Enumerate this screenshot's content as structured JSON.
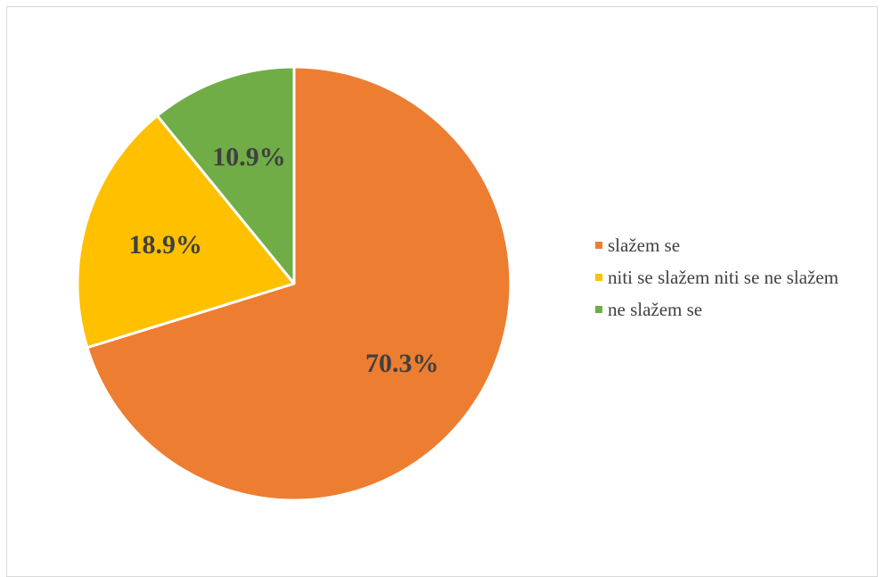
{
  "chart_data": {
    "type": "pie",
    "categories": [
      "slažem se",
      "niti se slažem niti se ne slažem",
      "ne slažem se"
    ],
    "values": [
      70.3,
      18.9,
      10.9
    ],
    "labels": [
      "70.3%",
      "18.9%",
      "10.9%"
    ],
    "colors": [
      "#ED7D31",
      "#FFC000",
      "#70AD47"
    ],
    "legend_position": "right",
    "start_angle_deg": 0,
    "direction": "clockwise"
  }
}
